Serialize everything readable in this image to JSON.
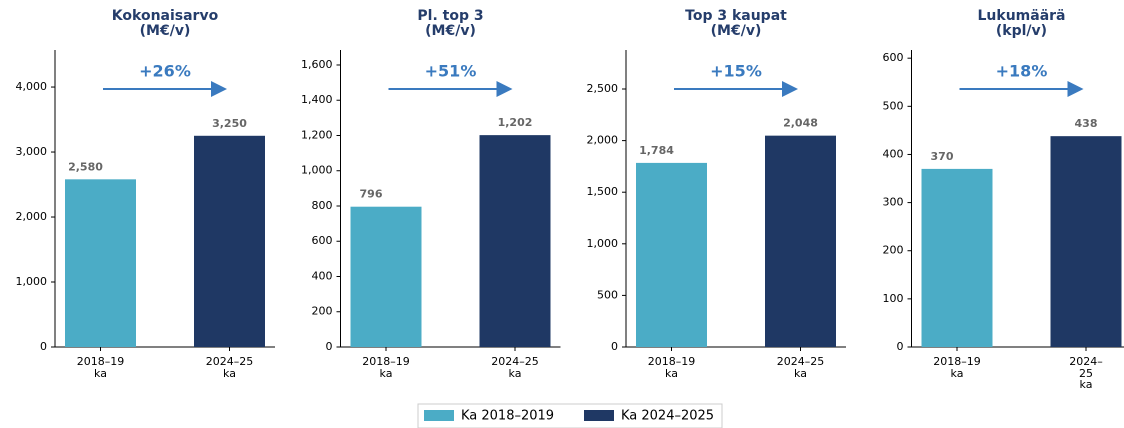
{
  "chart_data": [
    {
      "type": "bar",
      "title": "Kokonaisarvo\n(M€/v)",
      "annotation": "+26%",
      "categories": [
        "2018–19\nka",
        "2024–25\nka"
      ],
      "values": [
        2580,
        3250
      ],
      "value_labels": [
        "2,580",
        "3,250"
      ],
      "colors": [
        "#4bacc6",
        "#1f3864"
      ],
      "ylim": [
        0,
        4570
      ],
      "yticks": [
        {
          "value": 0,
          "label": "0"
        },
        {
          "value": 1000,
          "label": "1,000"
        },
        {
          "value": 2000,
          "label": "2,000"
        },
        {
          "value": 3000,
          "label": "3,000"
        },
        {
          "value": 4000,
          "label": "4,000"
        }
      ]
    },
    {
      "type": "bar",
      "title": "Pl. top 3\n(M€/v)",
      "annotation": "+51%",
      "categories": [
        "2018–19\nka",
        "2024–25\nka"
      ],
      "values": [
        796,
        1202
      ],
      "value_labels": [
        "796",
        "1,202"
      ],
      "colors": [
        "#4bacc6",
        "#1f3864"
      ],
      "ylim": [
        0,
        1685
      ],
      "yticks": [
        0,
        200,
        400,
        600,
        800,
        {
          "value": 1000,
          "label": "1,000"
        },
        {
          "value": 1200,
          "label": "1,200"
        },
        {
          "value": 1400,
          "label": "1,400"
        },
        {
          "value": 1600,
          "label": "1,600"
        }
      ]
    },
    {
      "type": "bar",
      "title": "Top 3 kaupat\n(M€/v)",
      "annotation": "+15%",
      "categories": [
        "2018–19\nka",
        "2024–25\nka"
      ],
      "values": [
        1784,
        2048
      ],
      "value_labels": [
        "1,784",
        "2,048"
      ],
      "colors": [
        "#4bacc6",
        "#1f3864"
      ],
      "ylim": [
        0,
        2878
      ],
      "yticks": [
        0,
        500,
        {
          "value": 1000,
          "label": "1,000"
        },
        {
          "value": 1500,
          "label": "1,500"
        },
        {
          "value": 2000,
          "label": "2,000"
        },
        {
          "value": 2500,
          "label": "2,500"
        }
      ]
    },
    {
      "type": "bar",
      "title": "Lukumäärä\n(kpl/v)",
      "annotation": "+18%",
      "categories": [
        "2018–19\nka",
        "2024–25\nka"
      ],
      "values": [
        370,
        438
      ],
      "colors": [
        "#4bacc6",
        "#1f3864"
      ],
      "ylim": [
        0,
        617
      ],
      "yticks": [
        0,
        100,
        200,
        300,
        400,
        500,
        600
      ]
    }
  ],
  "legend": [
    {
      "name": "Ka 2018–2019",
      "color": "#4bacc6"
    },
    {
      "name": "Ka 2024–2025",
      "color": "#1f3864"
    }
  ]
}
